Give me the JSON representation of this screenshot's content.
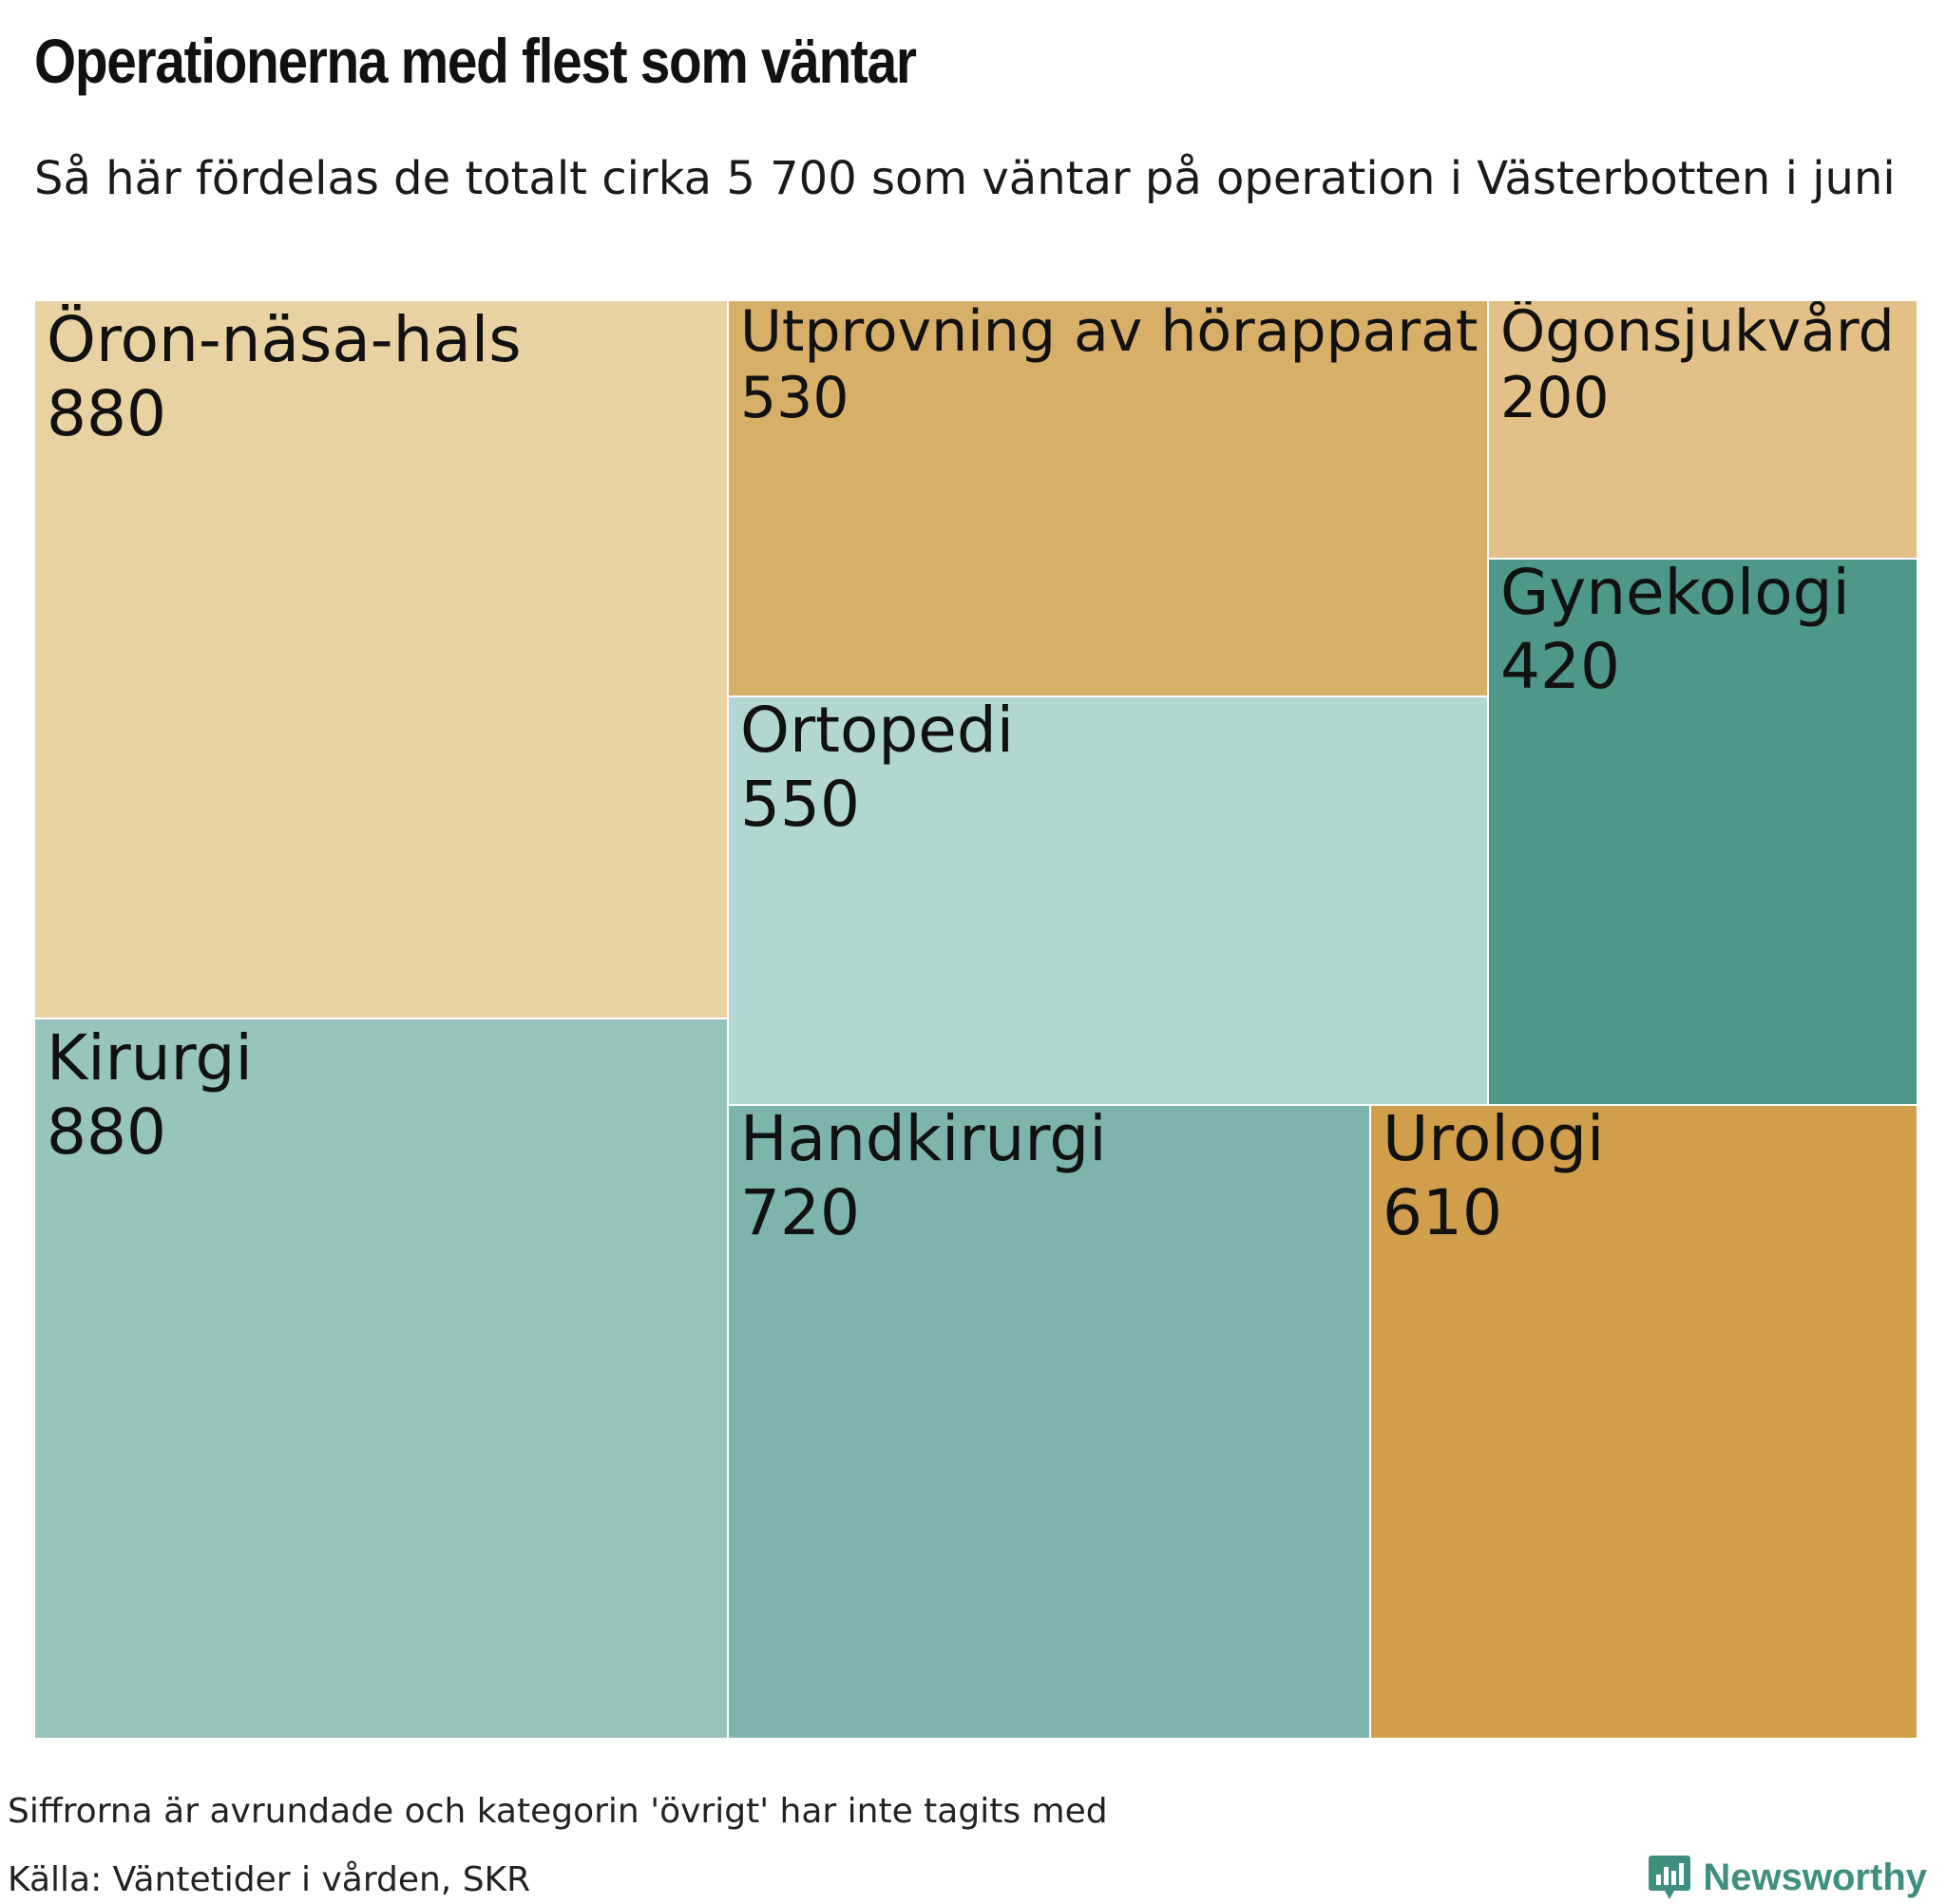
{
  "chart_data": {
    "type": "treemap",
    "title": "Operationerna med flest som väntar",
    "subtitle": "Så här fördelas de totalt cirka 5 700 som väntar på operation i Västerbotten i juni",
    "categories": [
      "Öron-näsa-hals",
      "Kirurgi",
      "Utprovning av hörapparat",
      "Ögonsjukvård",
      "Gynekologi",
      "Ortopedi",
      "Handkirurgi",
      "Urologi"
    ],
    "values": [
      880,
      880,
      530,
      200,
      420,
      550,
      720,
      610
    ],
    "colors": [
      "#e8d2a2",
      "#98c4be",
      "#d8af69",
      "#e2c088",
      "#4e978b",
      "#b2d6d1",
      "#7eb4ae",
      "#d19f4b"
    ]
  },
  "footer": {
    "note": "Siffrorna är avrundade och kategorin 'övrigt' har inte tagits med",
    "source": "Källa: Väntetider i vården, SKR",
    "brand": "Newsworthy",
    "brand_color": "#3f8f80",
    "brand_icon": "bar-chart-speech-bubble-icon"
  }
}
